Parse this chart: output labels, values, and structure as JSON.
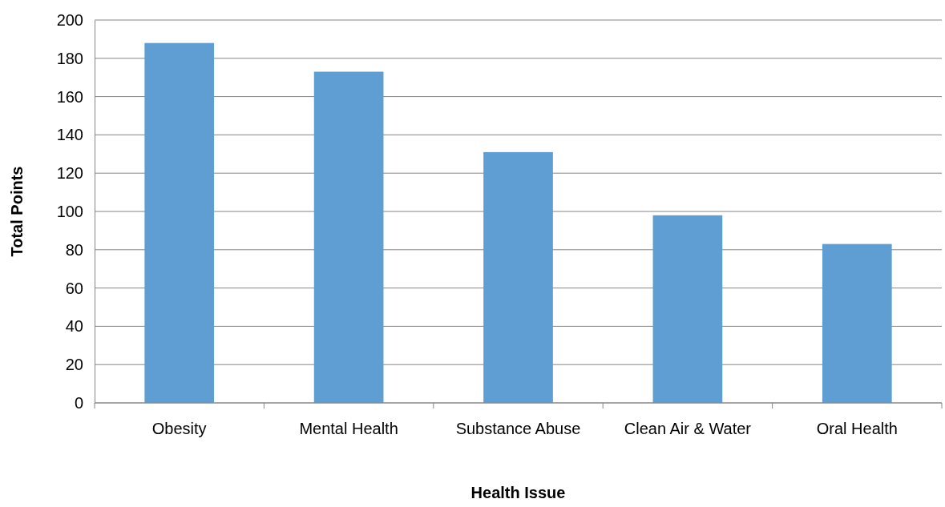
{
  "chart_data": {
    "type": "bar",
    "xlabel": "Health Issue",
    "ylabel": "Total Points",
    "categories": [
      "Obesity",
      "Mental Health",
      "Substance Abuse",
      "Clean Air & Water",
      "Oral Health"
    ],
    "values": [
      188,
      173,
      131,
      98,
      83
    ],
    "color": "#5f9ed3",
    "ylim": [
      0,
      200
    ],
    "yticks": [
      0,
      20,
      40,
      60,
      80,
      100,
      120,
      140,
      160,
      180,
      200
    ],
    "grid": "y"
  }
}
